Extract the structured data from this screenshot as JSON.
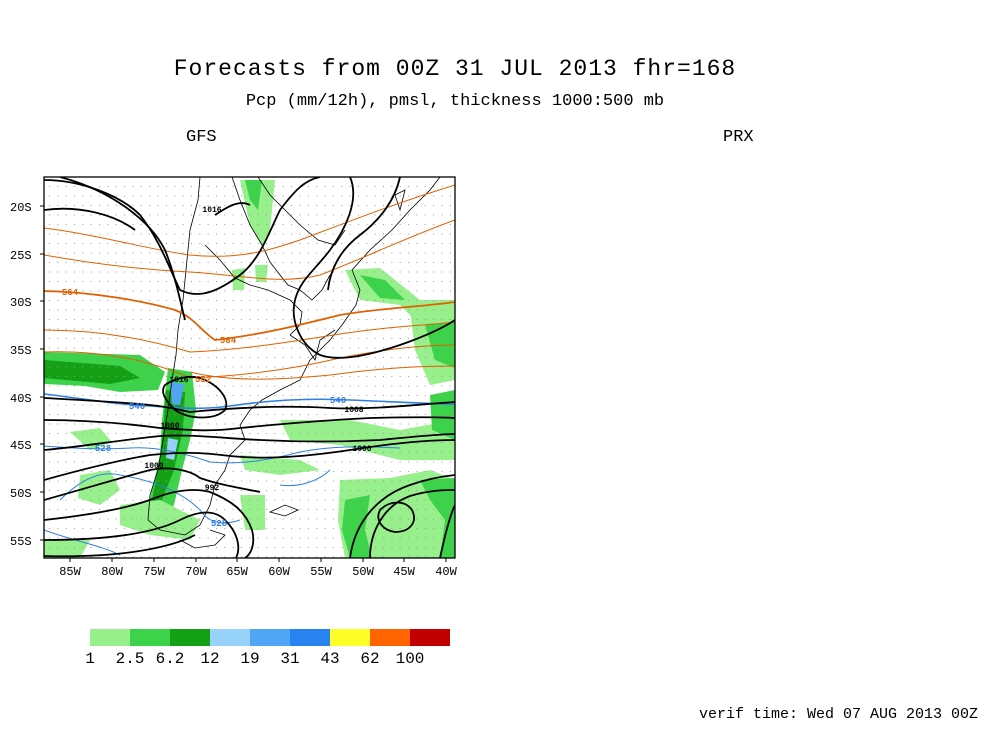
{
  "header": {
    "title": "Forecasts from 00Z 31 JUL 2013   fhr=168",
    "subtitle": "Pcp (mm/12h), pmsl, thickness 1000:500 mb",
    "left_model": "GFS",
    "right_model": "PRX"
  },
  "map": {
    "lat_labels": [
      "20S",
      "25S",
      "30S",
      "35S",
      "40S",
      "45S",
      "50S",
      "55S"
    ],
    "lon_labels": [
      "85W",
      "80W",
      "75W",
      "70W",
      "65W",
      "60W",
      "55W",
      "50W",
      "45W",
      "40W"
    ],
    "pressure_labels": [
      "1016",
      "1016",
      "1008",
      "1000",
      "1000",
      "1000",
      "992"
    ],
    "thickness_labels": [
      "564",
      "564",
      "552",
      "540",
      "540",
      "528",
      "528"
    ],
    "colors": {
      "isobar": "#000000",
      "thickness_warm": "#e06000",
      "thickness_cold": "#2f7fe0",
      "coastline": "#000000",
      "grid_dot": "#999999"
    }
  },
  "legend": {
    "labels": [
      "1",
      "2.5",
      "6.2",
      "12",
      "19",
      "31",
      "43",
      "62",
      "100"
    ],
    "colors": [
      "#98f08c",
      "#3cd24a",
      "#14a014",
      "#96d2fa",
      "#50a5f5",
      "#2882f0",
      "#ffff28",
      "#ff6400",
      "#c00000"
    ]
  },
  "footer": {
    "verif_time": "verif time: Wed 07 AUG 2013 00Z"
  }
}
